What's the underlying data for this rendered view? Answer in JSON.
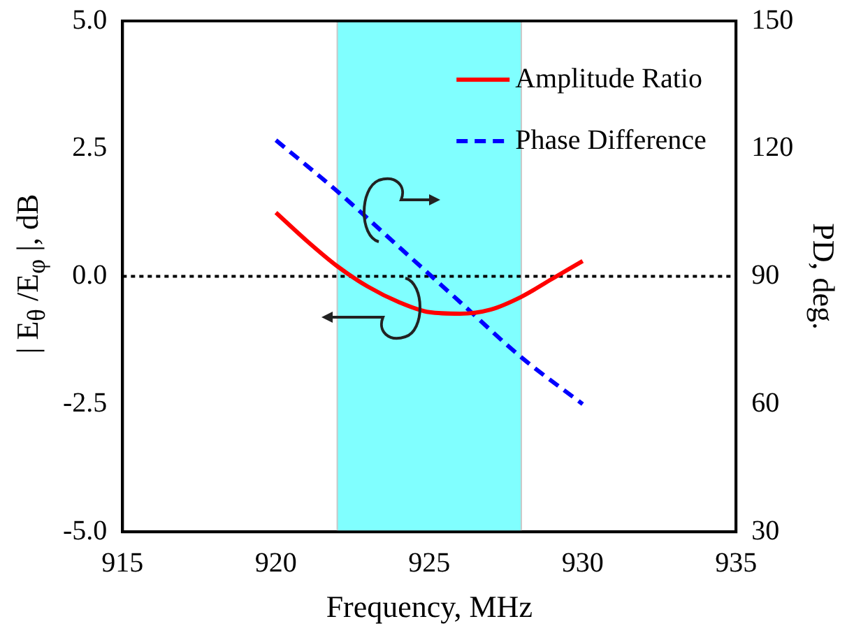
{
  "chart_data": {
    "type": "line",
    "xlabel": "Frequency, MHz",
    "ylabel": "| E$_{θ}$ /E$_{φ}$ |, dB",
    "y2label": "PD, deg.",
    "series": [
      {
        "name": "Amplitude Ratio",
        "color": "#ff0000",
        "line_style": "solid",
        "x": [
          920,
          921,
          922,
          923,
          924,
          925,
          926,
          927,
          928,
          929,
          930
        ],
        "values": [
          1.25,
          0.7,
          0.2,
          -0.2,
          -0.5,
          -0.7,
          -0.73,
          -0.65,
          -0.4,
          -0.05,
          0.3
        ]
      },
      {
        "name": "Phase Difference",
        "color": "#0000ff",
        "line_style": "dashed",
        "axis": "y2",
        "x": [
          920,
          922,
          924,
          926,
          928,
          930
        ],
        "values": [
          122,
          110,
          97,
          84,
          71,
          60
        ]
      }
    ],
    "xlim": [
      915,
      935
    ],
    "xticks": [
      915,
      920,
      925,
      930,
      935
    ],
    "ylim": [
      -5,
      5
    ],
    "yticks": [
      {
        "value": -5,
        "label": "-5.0"
      },
      {
        "value": -2.5,
        "label": "-2.5"
      },
      {
        "value": 0,
        "label": "0.0"
      },
      {
        "value": 2.5,
        "label": "2.5"
      },
      {
        "value": 5,
        "label": "5.0"
      }
    ],
    "y2lim": [
      30,
      150
    ],
    "y2ticks": [
      30,
      60,
      90,
      120,
      150
    ],
    "bands": [
      {
        "axis": "x",
        "from": 922,
        "to": 928,
        "color": "#80ffff"
      }
    ],
    "ref_lines": [
      {
        "axis": "y",
        "value": 0,
        "color": "#000000",
        "line_style": "dotted"
      }
    ],
    "grid": false,
    "legend": "top right",
    "marker": "none"
  }
}
